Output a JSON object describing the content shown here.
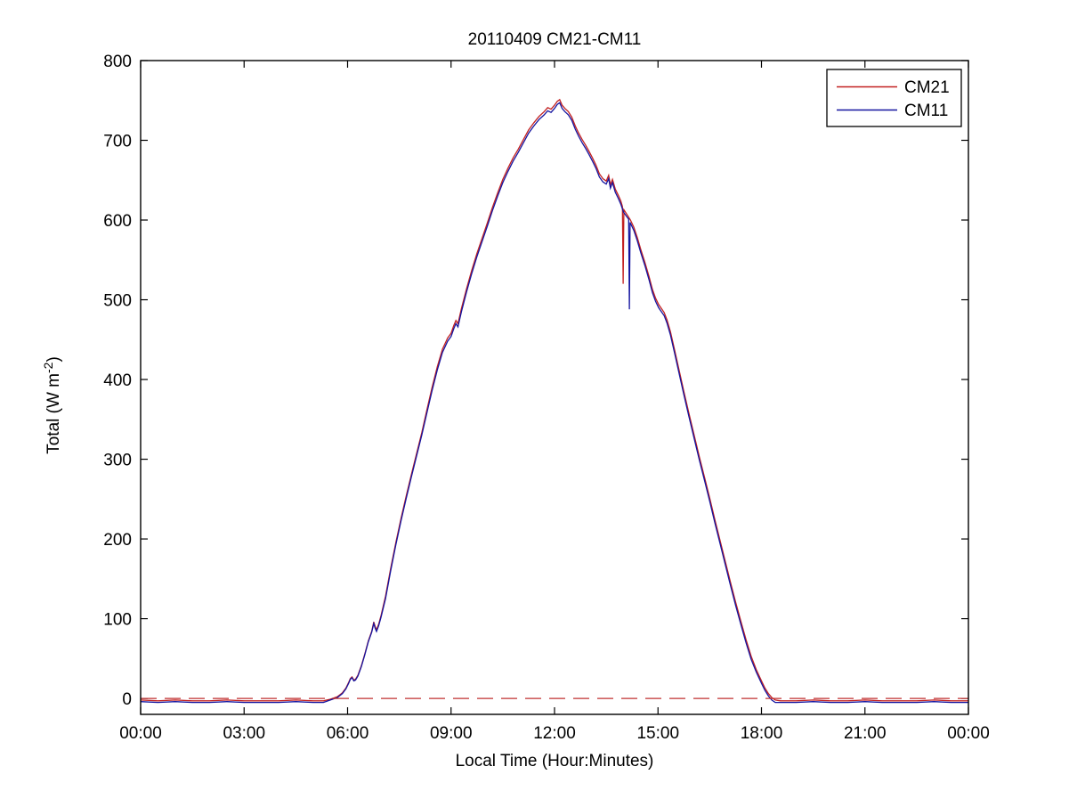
{
  "figure": {
    "background": "#ffffff",
    "axis_color": "#000000",
    "ylabel_prefix": "Total (W m",
    "ylabel_superscript": "-2",
    "ylabel_suffix": ")"
  },
  "chart_data": {
    "type": "line",
    "title": "20110409 CM21-CM11",
    "xlabel": "Local Time (Hour:Minutes)",
    "ylabel": "Total (W m^-2)",
    "xlim_hours": [
      0,
      24
    ],
    "ylim": [
      -20,
      800
    ],
    "grid": false,
    "x_ticks_hours": [
      0,
      3,
      6,
      9,
      12,
      15,
      18,
      21,
      24
    ],
    "x_tick_labels": [
      "00:00",
      "03:00",
      "06:00",
      "09:00",
      "12:00",
      "15:00",
      "18:00",
      "21:00",
      "00:00"
    ],
    "y_ticks": [
      0,
      100,
      200,
      300,
      400,
      500,
      600,
      700,
      800
    ],
    "legend": {
      "position": "northeast",
      "entries": [
        "CM21",
        "CM11"
      ]
    },
    "zero_line": {
      "value": 0,
      "style": "dashed",
      "color": "#c03030"
    },
    "series": [
      {
        "name": "CM21",
        "color": "#c22020",
        "points": [
          [
            0,
            -2
          ],
          [
            0.5,
            -3
          ],
          [
            1,
            -2
          ],
          [
            1.5,
            -3
          ],
          [
            2,
            -3
          ],
          [
            2.5,
            -2
          ],
          [
            3,
            -3
          ],
          [
            3.5,
            -3
          ],
          [
            4,
            -3
          ],
          [
            4.5,
            -2
          ],
          [
            5,
            -3
          ],
          [
            5.3,
            -3
          ],
          [
            5.5,
            -1
          ],
          [
            5.7,
            2
          ],
          [
            5.85,
            7
          ],
          [
            5.95,
            13
          ],
          [
            6.03,
            20
          ],
          [
            6.08,
            25
          ],
          [
            6.13,
            27
          ],
          [
            6.18,
            23
          ],
          [
            6.23,
            24
          ],
          [
            6.3,
            29
          ],
          [
            6.4,
            41
          ],
          [
            6.5,
            56
          ],
          [
            6.6,
            72
          ],
          [
            6.7,
            84
          ],
          [
            6.76,
            96
          ],
          [
            6.8,
            90
          ],
          [
            6.84,
            86
          ],
          [
            6.9,
            93
          ],
          [
            6.97,
            104
          ],
          [
            7.1,
            128
          ],
          [
            7.25,
            163
          ],
          [
            7.4,
            196
          ],
          [
            7.55,
            226
          ],
          [
            7.7,
            254
          ],
          [
            7.85,
            281
          ],
          [
            8,
            307
          ],
          [
            8.15,
            333
          ],
          [
            8.3,
            362
          ],
          [
            8.45,
            390
          ],
          [
            8.6,
            416
          ],
          [
            8.75,
            438
          ],
          [
            8.9,
            452
          ],
          [
            9,
            458
          ],
          [
            9.08,
            468
          ],
          [
            9.14,
            474
          ],
          [
            9.2,
            470
          ],
          [
            9.3,
            489
          ],
          [
            9.45,
            514
          ],
          [
            9.6,
            537
          ],
          [
            9.75,
            558
          ],
          [
            9.9,
            577
          ],
          [
            10.05,
            596
          ],
          [
            10.2,
            616
          ],
          [
            10.35,
            634
          ],
          [
            10.5,
            651
          ],
          [
            10.65,
            665
          ],
          [
            10.8,
            678
          ],
          [
            10.95,
            689
          ],
          [
            11.1,
            701
          ],
          [
            11.25,
            713
          ],
          [
            11.4,
            722
          ],
          [
            11.55,
            730
          ],
          [
            11.7,
            736
          ],
          [
            11.8,
            741
          ],
          [
            11.9,
            739
          ],
          [
            12,
            744
          ],
          [
            12.08,
            749
          ],
          [
            12.15,
            751
          ],
          [
            12.22,
            744
          ],
          [
            12.3,
            740
          ],
          [
            12.4,
            736
          ],
          [
            12.5,
            729
          ],
          [
            12.6,
            718
          ],
          [
            12.7,
            709
          ],
          [
            12.8,
            701
          ],
          [
            12.9,
            694
          ],
          [
            13,
            686
          ],
          [
            13.1,
            678
          ],
          [
            13.2,
            669
          ],
          [
            13.3,
            658
          ],
          [
            13.4,
            652
          ],
          [
            13.5,
            649
          ],
          [
            13.57,
            656
          ],
          [
            13.62,
            644
          ],
          [
            13.68,
            651
          ],
          [
            13.76,
            639
          ],
          [
            13.85,
            631
          ],
          [
            13.92,
            624
          ],
          [
            13.97,
            617
          ],
          [
            13.99,
            520
          ],
          [
            14.01,
            613
          ],
          [
            14.1,
            607
          ],
          [
            14.2,
            600
          ],
          [
            14.3,
            591
          ],
          [
            14.4,
            578
          ],
          [
            14.5,
            563
          ],
          [
            14.62,
            547
          ],
          [
            14.74,
            529
          ],
          [
            14.84,
            513
          ],
          [
            14.93,
            502
          ],
          [
            15.02,
            494
          ],
          [
            15.1,
            489
          ],
          [
            15.18,
            484
          ],
          [
            15.26,
            475
          ],
          [
            15.36,
            460
          ],
          [
            15.48,
            437
          ],
          [
            15.6,
            414
          ],
          [
            15.75,
            385
          ],
          [
            15.9,
            357
          ],
          [
            16.05,
            330
          ],
          [
            16.2,
            303
          ],
          [
            16.35,
            277
          ],
          [
            16.5,
            251
          ],
          [
            16.65,
            224
          ],
          [
            16.8,
            198
          ],
          [
            16.95,
            172
          ],
          [
            17.1,
            146
          ],
          [
            17.25,
            121
          ],
          [
            17.4,
            97
          ],
          [
            17.55,
            74
          ],
          [
            17.7,
            53
          ],
          [
            17.85,
            36
          ],
          [
            18,
            22
          ],
          [
            18.1,
            13
          ],
          [
            18.2,
            6
          ],
          [
            18.3,
            1
          ],
          [
            18.4,
            -2
          ],
          [
            18.55,
            -3
          ],
          [
            19,
            -3
          ],
          [
            19.5,
            -2
          ],
          [
            20,
            -3
          ],
          [
            20.5,
            -3
          ],
          [
            21,
            -2
          ],
          [
            21.5,
            -3
          ],
          [
            22,
            -3
          ],
          [
            22.5,
            -3
          ],
          [
            23,
            -2
          ],
          [
            23.5,
            -3
          ],
          [
            24,
            -3
          ]
        ]
      },
      {
        "name": "CM11",
        "color": "#1414a0",
        "points": [
          [
            0,
            -4
          ],
          [
            0.5,
            -5
          ],
          [
            1,
            -4
          ],
          [
            1.5,
            -5
          ],
          [
            2,
            -5
          ],
          [
            2.5,
            -4
          ],
          [
            3,
            -5
          ],
          [
            3.5,
            -5
          ],
          [
            4,
            -5
          ],
          [
            4.5,
            -4
          ],
          [
            5,
            -5
          ],
          [
            5.3,
            -5
          ],
          [
            5.5,
            -2
          ],
          [
            5.7,
            1
          ],
          [
            5.85,
            6
          ],
          [
            5.95,
            12
          ],
          [
            6.03,
            19
          ],
          [
            6.08,
            24
          ],
          [
            6.13,
            26
          ],
          [
            6.18,
            22
          ],
          [
            6.23,
            23
          ],
          [
            6.3,
            28
          ],
          [
            6.4,
            40
          ],
          [
            6.5,
            55
          ],
          [
            6.6,
            71
          ],
          [
            6.7,
            83
          ],
          [
            6.76,
            94
          ],
          [
            6.8,
            88
          ],
          [
            6.84,
            84
          ],
          [
            6.9,
            91
          ],
          [
            6.97,
            102
          ],
          [
            7.1,
            125
          ],
          [
            7.25,
            160
          ],
          [
            7.4,
            193
          ],
          [
            7.55,
            223
          ],
          [
            7.7,
            251
          ],
          [
            7.85,
            278
          ],
          [
            8,
            304
          ],
          [
            8.15,
            330
          ],
          [
            8.3,
            358
          ],
          [
            8.45,
            386
          ],
          [
            8.6,
            412
          ],
          [
            8.75,
            434
          ],
          [
            8.9,
            448
          ],
          [
            9,
            454
          ],
          [
            9.08,
            464
          ],
          [
            9.14,
            470
          ],
          [
            9.2,
            466
          ],
          [
            9.3,
            485
          ],
          [
            9.45,
            510
          ],
          [
            9.6,
            533
          ],
          [
            9.75,
            554
          ],
          [
            9.9,
            573
          ],
          [
            10.05,
            592
          ],
          [
            10.2,
            612
          ],
          [
            10.35,
            630
          ],
          [
            10.5,
            647
          ],
          [
            10.65,
            661
          ],
          [
            10.8,
            674
          ],
          [
            10.95,
            685
          ],
          [
            11.1,
            697
          ],
          [
            11.25,
            709
          ],
          [
            11.4,
            718
          ],
          [
            11.55,
            726
          ],
          [
            11.7,
            732
          ],
          [
            11.8,
            737
          ],
          [
            11.9,
            735
          ],
          [
            12,
            740
          ],
          [
            12.08,
            745
          ],
          [
            12.15,
            747
          ],
          [
            12.22,
            740
          ],
          [
            12.3,
            736
          ],
          [
            12.4,
            732
          ],
          [
            12.5,
            725
          ],
          [
            12.6,
            714
          ],
          [
            12.7,
            705
          ],
          [
            12.8,
            697
          ],
          [
            12.9,
            690
          ],
          [
            13,
            682
          ],
          [
            13.1,
            674
          ],
          [
            13.2,
            665
          ],
          [
            13.3,
            654
          ],
          [
            13.4,
            648
          ],
          [
            13.5,
            645
          ],
          [
            13.57,
            652
          ],
          [
            13.62,
            640
          ],
          [
            13.68,
            647
          ],
          [
            13.76,
            635
          ],
          [
            13.85,
            627
          ],
          [
            13.92,
            620
          ],
          [
            14,
            610
          ],
          [
            14.08,
            605
          ],
          [
            14.15,
            601
          ],
          [
            14.17,
            488
          ],
          [
            14.19,
            597
          ],
          [
            14.3,
            587
          ],
          [
            14.4,
            574
          ],
          [
            14.5,
            559
          ],
          [
            14.62,
            543
          ],
          [
            14.74,
            525
          ],
          [
            14.84,
            509
          ],
          [
            14.93,
            498
          ],
          [
            15.02,
            490
          ],
          [
            15.1,
            485
          ],
          [
            15.18,
            480
          ],
          [
            15.26,
            471
          ],
          [
            15.36,
            456
          ],
          [
            15.48,
            433
          ],
          [
            15.6,
            410
          ],
          [
            15.75,
            381
          ],
          [
            15.9,
            353
          ],
          [
            16.05,
            326
          ],
          [
            16.2,
            299
          ],
          [
            16.35,
            273
          ],
          [
            16.5,
            247
          ],
          [
            16.65,
            220
          ],
          [
            16.8,
            194
          ],
          [
            16.95,
            168
          ],
          [
            17.1,
            142
          ],
          [
            17.25,
            117
          ],
          [
            17.4,
            93
          ],
          [
            17.55,
            70
          ],
          [
            17.7,
            49
          ],
          [
            17.85,
            33
          ],
          [
            18,
            19
          ],
          [
            18.1,
            10
          ],
          [
            18.2,
            3
          ],
          [
            18.3,
            -2
          ],
          [
            18.4,
            -5
          ],
          [
            18.55,
            -5
          ],
          [
            19,
            -5
          ],
          [
            19.5,
            -4
          ],
          [
            20,
            -5
          ],
          [
            20.5,
            -5
          ],
          [
            21,
            -4
          ],
          [
            21.5,
            -5
          ],
          [
            22,
            -5
          ],
          [
            22.5,
            -5
          ],
          [
            23,
            -4
          ],
          [
            23.5,
            -5
          ],
          [
            24,
            -5
          ]
        ]
      }
    ]
  }
}
